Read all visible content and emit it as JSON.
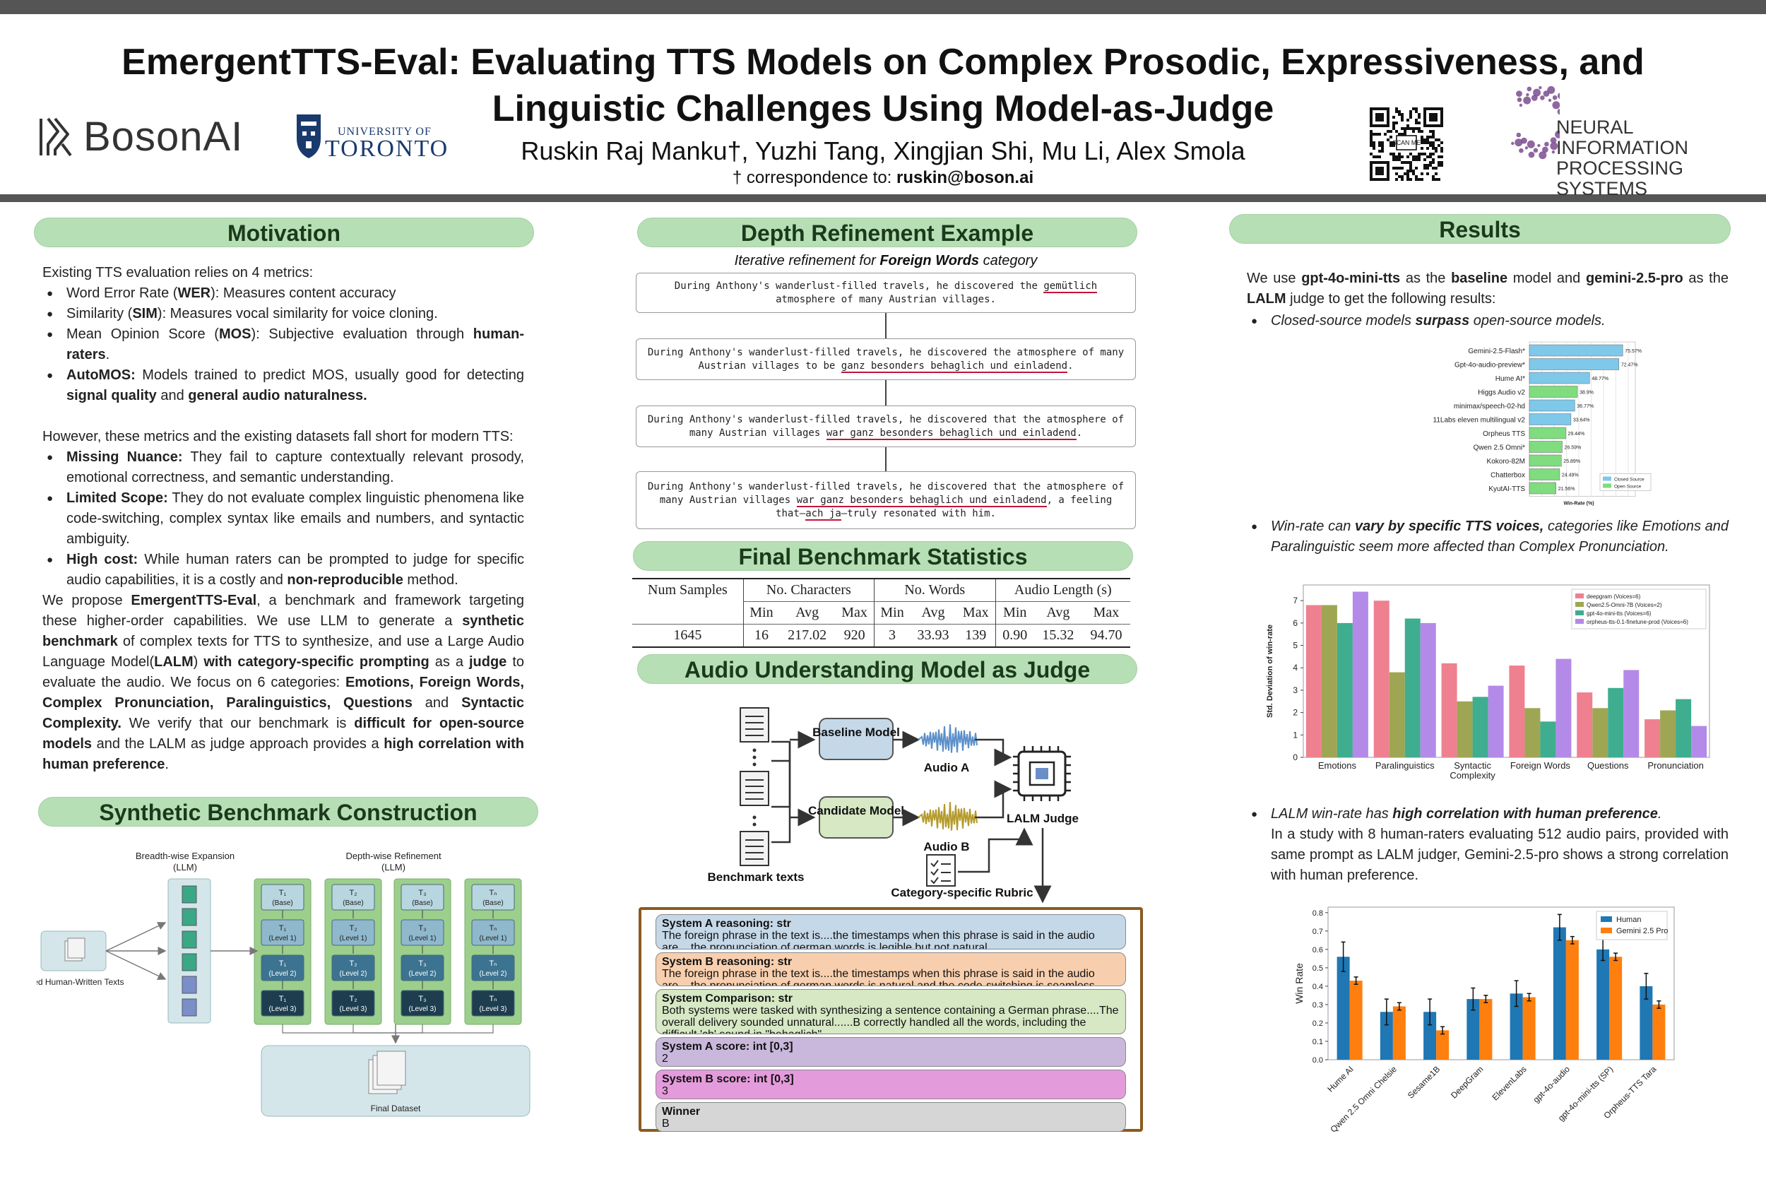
{
  "header": {
    "title_line1": "EmergentTTS-Eval: Evaluating TTS Models on Complex Prosodic, Expressiveness, and",
    "title_line2": "Linguistic Challenges Using Model-as-Judge",
    "authors": "Ruskin Raj Manku†, Yuzhi Tang, Xingjian Shi, Mu Li, Alex Smola",
    "correspondence_prefix": "† correspondence to: ",
    "correspondence_email": "ruskin@boson.ai",
    "logo_boson": "BosonAI",
    "logo_uoft_small": "UNIVERSITY OF",
    "logo_uoft_big": "TORONTO",
    "qr_label": "SCAN ME",
    "logo_neurips_line1": "NEURAL INFORMATION",
    "logo_neurips_line2": "PROCESSING SYSTEMS"
  },
  "motivation": {
    "heading": "Motivation",
    "intro": "Existing TTS evaluation relies on 4 metrics:",
    "metrics": [
      {
        "pre": "Word Error Rate (",
        "bold": "WER",
        "post": "): Measures content accuracy"
      },
      {
        "pre": "Similarity (",
        "bold": "SIM",
        "post": "): Measures vocal similarity for voice cloning."
      },
      {
        "pre": "Mean Opinion Score (",
        "bold": "MOS",
        "post": "): Subjective evaluation through ",
        "bold2": "human-raters",
        "post2": "."
      },
      {
        "pre": "",
        "bold": "AutoMOS:",
        "post": " Models trained to predict MOS, usually good for detecting ",
        "bold2": "signal quality",
        "post2": " and ",
        "bold3": "general audio naturalness.",
        "post3": ""
      }
    ],
    "shortfall_intro": "However, these metrics and the existing datasets fall short for modern TTS:",
    "shortfalls": [
      {
        "bold": "Missing Nuance:",
        "text": " They fail to capture contextually relevant prosody, emotional correctness, and semantic understanding."
      },
      {
        "bold": "Limited Scope:",
        "text": " They do not evaluate complex linguistic phenomena like code-switching, complex syntax like emails and numbers, and syntactic ambiguity."
      },
      {
        "bold": "High cost:",
        "text": " While human raters can be prompted to judge for specific audio capabilities, it is a costly and ",
        "bold2": "non-reproducible",
        "text2": " method."
      }
    ],
    "proposal": [
      {
        "t": "We propose "
      },
      {
        "b": "EmergentTTS-Eval"
      },
      {
        "t": ", a benchmark and framework targeting these higher-order capabilities. We use LLM to generate a "
      },
      {
        "b": "synthetic benchmark"
      },
      {
        "t": " of complex texts for TTS to synthesize, and use a Large Audio Language Model("
      },
      {
        "b": "LALM"
      },
      {
        "t": ") "
      },
      {
        "b": "with category-specific prompting"
      },
      {
        "t": " as a "
      },
      {
        "b": "judge"
      },
      {
        "t": " to evaluate the audio. We focus on 6 categories: "
      },
      {
        "b": "Emotions, Foreign Words, Complex Pronunciation, Paralinguistics, Questions"
      },
      {
        "t": " and "
      },
      {
        "b": "Syntactic Complexity."
      },
      {
        "t": " We verify that our benchmark is "
      },
      {
        "b": "difficult for open-source models"
      },
      {
        "t": " and the LALM as judge approach provides a "
      },
      {
        "b": "high correlation with human preference"
      },
      {
        "t": "."
      }
    ]
  },
  "synthetic": {
    "heading": "Synthetic Benchmark Construction",
    "breadth_label": "Breadth-wise Expansion",
    "breadth_sub": "(LLM)",
    "depth_label": "Depth-wise Refinement",
    "depth_sub": "(LLM)",
    "seed_label": "Seed Human-Written Texts",
    "final_label": "Final Dataset",
    "columns": [
      {
        "name": "T₁",
        "levels": [
          "(Base)",
          "(Level 1)",
          "(Level 2)",
          "(Level 3)"
        ]
      },
      {
        "name": "T₂",
        "levels": [
          "(Base)",
          "(Level 1)",
          "(Level 2)",
          "(Level 3)"
        ]
      },
      {
        "name": "T₃",
        "levels": [
          "(Base)",
          "(Level 1)",
          "(Level 2)",
          "(Level 3)"
        ]
      },
      {
        "name": "Tₙ",
        "levels": [
          "(Base)",
          "(Level 1)",
          "(Level 2)",
          "(Level 3)"
        ]
      }
    ]
  },
  "depth": {
    "heading": "Depth Refinement Example",
    "caption_pre": "Iterative refinement for ",
    "caption_bold": "Foreign Words",
    "caption_post": " category",
    "steps": [
      {
        "a": "During Anthony's wanderlust-filled travels, he discovered the ",
        "u": "gemütlich",
        "b": " atmosphere of many Austrian villages.",
        "u2": "",
        "c": ""
      },
      {
        "a": "During Anthony's wanderlust-filled travels, he discovered the atmosphere of many Austrian villages to be ",
        "u": "ganz besonders behaglich und einladend",
        "b": ".",
        "u2": "",
        "c": ""
      },
      {
        "a": "During Anthony's wanderlust-filled travels, he discovered that the atmosphere of many Austrian villages ",
        "u": "war ganz besonders behaglich und einladend",
        "b": ".",
        "u2": "",
        "c": ""
      },
      {
        "a": "During Anthony's wanderlust-filled travels, he discovered that the atmosphere of many Austrian villages ",
        "u": "war ganz besonders behaglich und einladend",
        "b": ", a feeling that–",
        "u2": "ach ja",
        "c": "–truly resonated with him."
      }
    ]
  },
  "stats": {
    "heading": "Final Benchmark Statistics",
    "h_samples": "Num Samples",
    "h_chars": "No. Characters",
    "h_words": "No. Words",
    "h_audio": "Audio Length (s)",
    "sub": [
      "Min",
      "Avg",
      "Max",
      "Min",
      "Avg",
      "Max",
      "Min",
      "Avg",
      "Max"
    ],
    "row": [
      "1645",
      "16",
      "217.02",
      "920",
      "3",
      "33.93",
      "139",
      "0.90",
      "15.32",
      "94.70"
    ]
  },
  "judge": {
    "heading": "Audio Understanding Model as Judge",
    "benchmark_label": "Benchmark texts",
    "baseline_label": "Baseline Model",
    "candidate_label": "Candidate Model",
    "audio_a": "Audio A",
    "audio_b": "Audio B",
    "lalm_label": "LALM Judge",
    "rubric_label": "Category-specific Rubric",
    "outputs": [
      {
        "title": "System A reasoning: str",
        "body": "The foreign phrase in the text is....the timestamps when this phrase is said in the audio are....the pronunciation of german words is legible but not natural...",
        "bg": "#c5d8e8"
      },
      {
        "title": "System B reasoning: str",
        "body": "The foreign phrase in the text is....the timestamps when this phrase is said in the audio are....the pronunciation of german words is natural and the code-switching is seamless...",
        "bg": "#f8cfae"
      },
      {
        "title": "System Comparison: str",
        "body": "Both systems were tasked with synthesizing a sentence containing a German phrase....The overall delivery sounded unnatural......B correctly handled all the words, including the difficult 'ch' sound in \"behaglich\"",
        "bg": "#d6e8c4"
      },
      {
        "title": "System A score: int [0,3]",
        "body": "2",
        "bg": "#c9b8dc"
      },
      {
        "title": "System B score: int [0,3]",
        "body": "3",
        "bg": "#e49bdc"
      },
      {
        "title": "Winner",
        "body": "B",
        "bg": "#d6d6d6"
      }
    ]
  },
  "results": {
    "heading": "Results",
    "intro": [
      {
        "t": "We use "
      },
      {
        "b": "gpt-4o-mini-tts"
      },
      {
        "t": " as the "
      },
      {
        "b": "baseline"
      },
      {
        "t": " model and "
      },
      {
        "b": "gemini-2.5-pro"
      },
      {
        "t": " as the "
      },
      {
        "b": "LALM"
      },
      {
        "t": " judge to get the following results:"
      }
    ],
    "bullet1_pre": "Closed-source models ",
    "bullet1_bold": "surpass",
    "bullet1_post": " open-source models.",
    "bullet2_pre": "Win-rate can ",
    "bullet2_bold": "vary by specific TTS voices,",
    "bullet2_post": " categories like Emotions and Paralinguistic seem more affected than Complex Pronunciation.",
    "bullet3_pre": "LALM win-rate has ",
    "bullet3_bold": "high correlation with human preference",
    "bullet3_post": ".",
    "bullet3_detail": "In a study with 8 human-raters evaluating 512 audio pairs, provided with same prompt as LALM judger, Gemini-2.5-pro shows a strong correlation with human preference."
  },
  "chart_data": [
    {
      "type": "bar",
      "orientation": "horizontal",
      "categories": [
        "Gemini-2.5-Flash*",
        "Gpt-4o-audio-preview*",
        "Hume AI*",
        "Higgs Audio v2",
        "minimax/speech-02-hd",
        "11Labs eleven multilingual v2",
        "Orpheus TTS",
        "Qwen 2.5 Omni*",
        "Kokoro-82M",
        "Chatterbox",
        "KyutAI-TTS"
      ],
      "values": [
        75.57,
        72.47,
        48.77,
        38.9,
        36.77,
        33.64,
        29.44,
        26.59,
        25.89,
        24.49,
        21.56
      ],
      "labels": [
        "75.57%",
        "72.47%",
        "48.77%",
        "38.9%",
        "36.77%",
        "33.64%",
        "29.44%",
        "26.59%",
        "25.89%",
        "24.49%",
        "21.56%"
      ],
      "groups": [
        "closed",
        "closed",
        "closed",
        "open",
        "closed",
        "closed",
        "open",
        "open",
        "open",
        "open",
        "open"
      ],
      "legend": [
        "Closed Source",
        "Open Source"
      ],
      "colors": {
        "closed": "#7ec8ea",
        "open": "#7fdc7f"
      },
      "xlabel": "Win-Rate (%)",
      "xlim": [
        0,
        80
      ]
    },
    {
      "type": "bar",
      "categories": [
        "Emotions",
        "Paralinguistics",
        "Syntactic Complexity",
        "Foreign Words",
        "Questions",
        "Pronunciation"
      ],
      "series": [
        {
          "name": "deepgram (Voices=6)",
          "color": "#ee8090",
          "values": [
            6.8,
            7.0,
            4.2,
            4.1,
            2.9,
            1.7
          ]
        },
        {
          "name": "Qwen2.5-Omni-7B (Voices=2)",
          "color": "#9fa653",
          "values": [
            6.8,
            3.8,
            2.5,
            2.2,
            2.2,
            2.1
          ]
        },
        {
          "name": "gpt-4o-mini-tts (Voices=6)",
          "color": "#3fad90",
          "values": [
            6.0,
            6.2,
            2.7,
            1.6,
            3.1,
            2.6
          ]
        },
        {
          "name": "orpheus-tts-0.1-finetune-prod (Voices=6)",
          "color": "#b48ae8",
          "values": [
            7.4,
            6.0,
            3.2,
            4.4,
            3.9,
            1.4
          ]
        }
      ],
      "ylabel": "Std. Deviation of win-rate",
      "ylim": [
        0,
        7.7
      ],
      "yticks": [
        0,
        1,
        2,
        3,
        4,
        5,
        6,
        7
      ],
      "legend_position": "top-right"
    },
    {
      "type": "bar",
      "categories": [
        "Hume AI",
        "Qwen 2.5 Omni Chelsie",
        "Sesame1B",
        "DeepGram",
        "ElevenLabs",
        "gpt-4o-audio",
        "gpt-4o-mini-tts (SP)",
        "Orpheus-TTS Tara"
      ],
      "series": [
        {
          "name": "Human",
          "color": "#1f77b4",
          "values": [
            0.56,
            0.26,
            0.26,
            0.33,
            0.36,
            0.72,
            0.6,
            0.4
          ],
          "err": [
            0.08,
            0.07,
            0.07,
            0.06,
            0.07,
            0.07,
            0.06,
            0.07
          ]
        },
        {
          "name": "Gemini 2.5 Pro",
          "color": "#ff7f0e",
          "values": [
            0.43,
            0.29,
            0.16,
            0.33,
            0.34,
            0.65,
            0.56,
            0.3
          ],
          "err": [
            0.02,
            0.02,
            0.02,
            0.02,
            0.02,
            0.02,
            0.02,
            0.02
          ]
        }
      ],
      "ylabel": "Win Rate",
      "ylim": [
        0,
        0.83
      ],
      "yticks": [
        0.0,
        0.1,
        0.2,
        0.3,
        0.4,
        0.5,
        0.6,
        0.7,
        0.8
      ],
      "legend_position": "top-right"
    }
  ]
}
